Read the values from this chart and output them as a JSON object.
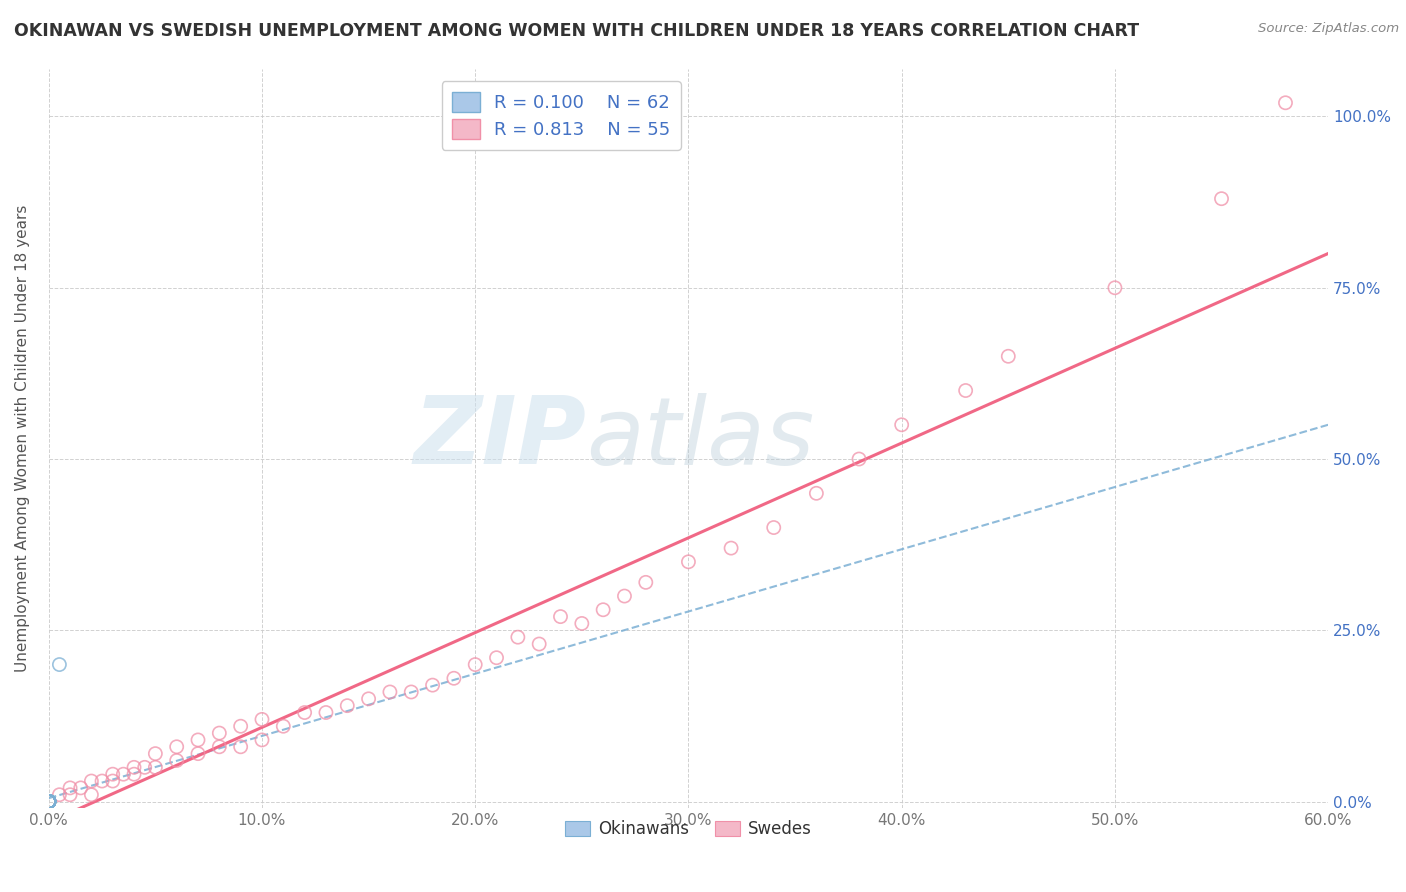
{
  "title": "OKINAWAN VS SWEDISH UNEMPLOYMENT AMONG WOMEN WITH CHILDREN UNDER 18 YEARS CORRELATION CHART",
  "source": "Source: ZipAtlas.com",
  "ylabel": "Unemployment Among Women with Children Under 18 years",
  "xlim": [
    0.0,
    0.6
  ],
  "ylim": [
    -0.01,
    1.07
  ],
  "xticks": [
    0.0,
    0.1,
    0.2,
    0.3,
    0.4,
    0.5,
    0.6
  ],
  "xticklabels": [
    "0.0%",
    "10.0%",
    "20.0%",
    "30.0%",
    "40.0%",
    "50.0%",
    "60.0%"
  ],
  "yticks_right": [
    0.0,
    0.25,
    0.5,
    0.75,
    1.0
  ],
  "yticklabels_right": [
    "0.0%",
    "25.0%",
    "50.0%",
    "75.0%",
    "100.0%"
  ],
  "background_color": "#ffffff",
  "grid_color": "#cccccc",
  "watermark_zip": "ZIP",
  "watermark_atlas": "atlas",
  "legend_R_okinawan": "0.100",
  "legend_N_okinawan": "62",
  "legend_R_swedish": "0.813",
  "legend_N_swedish": "55",
  "okinawan_edge_color": "#7bafd4",
  "okinawan_face_color": "none",
  "swedish_edge_color": "#f090a8",
  "swedish_face_color": "none",
  "okinawan_line_color": "#7bafd4",
  "swedish_line_color": "#f06080",
  "ok_line_x": [
    0.0,
    0.6
  ],
  "ok_line_y": [
    0.005,
    0.55
  ],
  "sw_line_x": [
    0.0,
    0.6
  ],
  "sw_line_y": [
    -0.03,
    0.8
  ],
  "okinawan_x": [
    0.0,
    0.0,
    0.0,
    0.0,
    0.0,
    0.0,
    0.0,
    0.0,
    0.0,
    0.0,
    0.0,
    0.0,
    0.0,
    0.0,
    0.0,
    0.0,
    0.0,
    0.0,
    0.0,
    0.0,
    0.0,
    0.0,
    0.0,
    0.0,
    0.0,
    0.0,
    0.0,
    0.0,
    0.0,
    0.0,
    0.0,
    0.0,
    0.0,
    0.0,
    0.0,
    0.0,
    0.0,
    0.0,
    0.0,
    0.0,
    0.0,
    0.0,
    0.0,
    0.0,
    0.0,
    0.0,
    0.0,
    0.0,
    0.0,
    0.0,
    0.0,
    0.0,
    0.0,
    0.0,
    0.0,
    0.0,
    0.0,
    0.0,
    0.0,
    0.0,
    0.0,
    0.005
  ],
  "okinawan_y": [
    0.0,
    0.0,
    0.0,
    0.0,
    0.0,
    0.0,
    0.0,
    0.0,
    0.0,
    0.0,
    0.0,
    0.0,
    0.0,
    0.0,
    0.0,
    0.0,
    0.0,
    0.0,
    0.0,
    0.0,
    0.0,
    0.0,
    0.0,
    0.0,
    0.0,
    0.0,
    0.0,
    0.0,
    0.0,
    0.0,
    0.0,
    0.0,
    0.0,
    0.0,
    0.0,
    0.0,
    0.0,
    0.0,
    0.0,
    0.0,
    0.0,
    0.0,
    0.0,
    0.0,
    0.0,
    0.0,
    0.0,
    0.0,
    0.0,
    0.0,
    0.0,
    0.0,
    0.0,
    0.0,
    0.0,
    0.0,
    0.0,
    0.0,
    0.0,
    0.0,
    0.0,
    0.2
  ],
  "swedish_x": [
    0.0,
    0.005,
    0.01,
    0.01,
    0.015,
    0.02,
    0.02,
    0.025,
    0.03,
    0.03,
    0.035,
    0.04,
    0.04,
    0.045,
    0.05,
    0.05,
    0.06,
    0.06,
    0.07,
    0.07,
    0.08,
    0.08,
    0.09,
    0.09,
    0.1,
    0.1,
    0.11,
    0.12,
    0.13,
    0.14,
    0.15,
    0.16,
    0.17,
    0.18,
    0.19,
    0.2,
    0.21,
    0.22,
    0.23,
    0.24,
    0.25,
    0.26,
    0.27,
    0.28,
    0.3,
    0.32,
    0.34,
    0.36,
    0.38,
    0.4,
    0.43,
    0.45,
    0.5,
    0.55,
    0.58
  ],
  "swedish_y": [
    0.0,
    0.01,
    0.01,
    0.02,
    0.02,
    0.01,
    0.03,
    0.03,
    0.03,
    0.04,
    0.04,
    0.04,
    0.05,
    0.05,
    0.05,
    0.07,
    0.06,
    0.08,
    0.07,
    0.09,
    0.08,
    0.1,
    0.08,
    0.11,
    0.09,
    0.12,
    0.11,
    0.13,
    0.13,
    0.14,
    0.15,
    0.16,
    0.16,
    0.17,
    0.18,
    0.2,
    0.21,
    0.24,
    0.23,
    0.27,
    0.26,
    0.28,
    0.3,
    0.32,
    0.35,
    0.37,
    0.4,
    0.45,
    0.5,
    0.55,
    0.6,
    0.65,
    0.75,
    0.88,
    1.02
  ]
}
